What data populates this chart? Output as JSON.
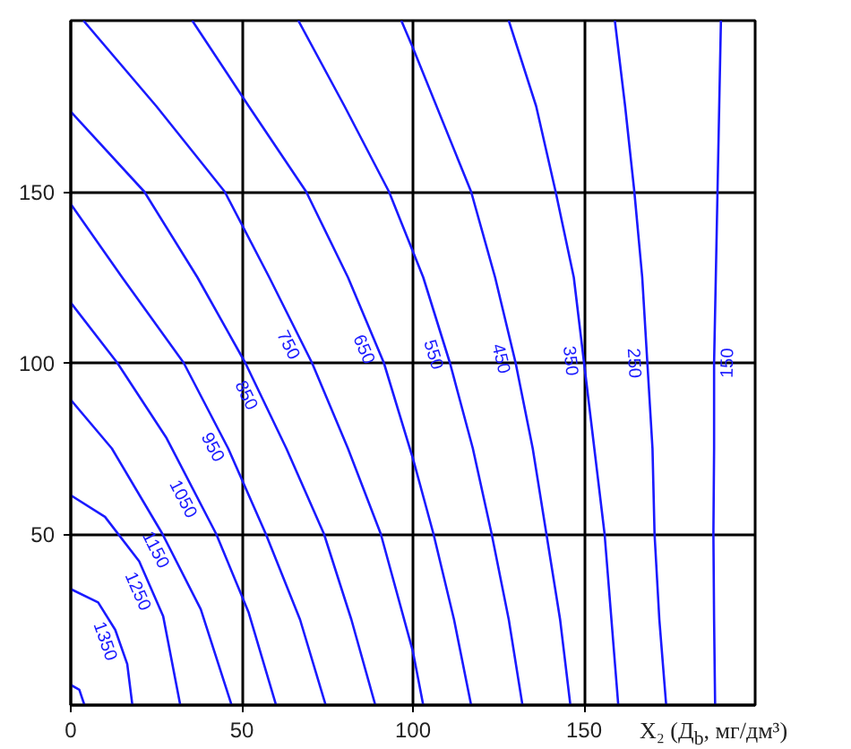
{
  "chart_data": {
    "type": "line",
    "xlabel": "X₂ (Д$_{b}$, мг/дм³)",
    "xlim": [
      0,
      200
    ],
    "ylim": [
      0,
      200
    ],
    "xticks": [
      0,
      50,
      100,
      150
    ],
    "yticks": [
      50,
      100,
      150
    ],
    "grid": true,
    "marker": "none",
    "line_style": "solid",
    "series": [
      {
        "color": "#1a1aff",
        "x": [
          0,
          2.5,
          4
        ],
        "values": [
          5.9,
          4.5,
          0
        ]
      },
      {
        "name": "1350",
        "color": "#1a1aff",
        "x": [
          0,
          8,
          13,
          16.5,
          18
        ],
        "values": [
          33.9,
          30,
          22,
          12,
          0
        ]
      },
      {
        "name": "1250",
        "color": "#1a1aff",
        "x": [
          0,
          10,
          20,
          27,
          32
        ],
        "values": [
          61.3,
          55,
          42,
          26,
          0
        ]
      },
      {
        "name": "1150",
        "color": "#1a1aff",
        "x": [
          0,
          12,
          26.8,
          38,
          47
        ],
        "values": [
          89.2,
          75,
          50,
          28,
          0
        ]
      },
      {
        "name": "1050",
        "color": "#1a1aff",
        "x": [
          0,
          13.6,
          28,
          42.5,
          52,
          60
        ],
        "values": [
          117.6,
          100,
          78,
          50,
          27,
          0
        ]
      },
      {
        "name": "950",
        "color": "#1a1aff",
        "x": [
          0,
          15,
          33,
          46,
          57,
          67,
          74.5
        ],
        "values": [
          146.4,
          125,
          100,
          75,
          50,
          25,
          0
        ]
      },
      {
        "name": "850",
        "color": "#1a1aff",
        "x": [
          0,
          21.5,
          37,
          51,
          63,
          74,
          82,
          89
        ],
        "values": [
          173.4,
          150,
          125,
          100,
          75,
          50,
          25,
          0
        ]
      },
      {
        "name": "750",
        "color": "#1a1aff",
        "x": [
          3.7,
          25,
          45,
          58,
          70.5,
          81,
          90.6,
          100,
          103
        ],
        "values": [
          200,
          175,
          150,
          125,
          100,
          75,
          50,
          15.6,
          0
        ]
      },
      {
        "name": "650",
        "color": "#1a1aff",
        "x": [
          35.5,
          52,
          68.8,
          81,
          91.5,
          100,
          106,
          112,
          117
        ],
        "values": [
          200,
          175,
          150,
          125,
          100,
          72,
          50,
          25,
          0
        ]
      },
      {
        "name": "550",
        "color": "#1a1aff",
        "x": [
          66.5,
          80,
          93,
          103,
          110.8,
          117.5,
          123,
          128,
          132
        ],
        "values": [
          200,
          175,
          150,
          125,
          100,
          75,
          50,
          25,
          0
        ]
      },
      {
        "name": "450",
        "color": "#1a1aff",
        "x": [
          96.6,
          100,
          117,
          124,
          130,
          135,
          139,
          143,
          146
        ],
        "values": [
          200,
          192,
          150,
          125,
          100,
          75,
          50,
          25,
          0
        ]
      },
      {
        "name": "350",
        "color": "#1a1aff",
        "x": [
          128,
          136,
          141.7,
          147,
          150,
          153,
          156,
          158,
          160
        ],
        "values": [
          200,
          175,
          150,
          125,
          100,
          75,
          50,
          25,
          0
        ]
      },
      {
        "name": "250",
        "color": "#1a1aff",
        "x": [
          159,
          162,
          164.7,
          167,
          168.5,
          170,
          170.6,
          172,
          174
        ],
        "values": [
          200,
          175,
          150,
          125,
          100,
          75,
          50,
          25,
          0
        ]
      },
      {
        "name": "150",
        "color": "#1a1aff",
        "x": [
          190,
          189.5,
          189,
          188.5,
          188,
          188,
          187.8,
          188,
          188.3
        ],
        "values": [
          200,
          175,
          150,
          125,
          100,
          75,
          50,
          25,
          0
        ]
      }
    ]
  }
}
